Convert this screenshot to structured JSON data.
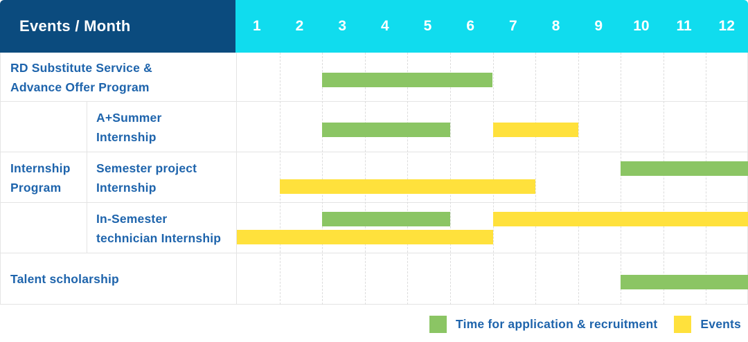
{
  "header": {
    "title": "Events / Month",
    "months": [
      "1",
      "2",
      "3",
      "4",
      "5",
      "6",
      "7",
      "8",
      "9",
      "10",
      "11",
      "12"
    ]
  },
  "colors": {
    "navy": "#0B4B7E",
    "cyan": "#10DCEE",
    "green": "#8BC564",
    "yellow": "#FFE13C",
    "label_blue": "#1E64AC",
    "grid_dash": "#DCDCDC",
    "row_border": "#E4E4E4"
  },
  "legend": [
    {
      "label": "Time for application & recruitment",
      "color_key": "green"
    },
    {
      "label": "Events",
      "color_key": "yellow"
    }
  ],
  "chart_data": {
    "type": "bar",
    "variant": "gantt",
    "title": "Events / Month",
    "x_axis": {
      "label": "Month",
      "ticks": [
        1,
        2,
        3,
        4,
        5,
        6,
        7,
        8,
        9,
        10,
        11,
        12
      ],
      "range": [
        1,
        12
      ]
    },
    "grid": "vertical-dashed",
    "legend_position": "bottom-right",
    "series_names": [
      "Time for application & recruitment",
      "Events"
    ],
    "rows": [
      {
        "category": "RD Substitute Service & Advance Offer Program",
        "label_lines": [
          "RD Substitute Service &",
          "Advance Offer Program"
        ],
        "group": null,
        "bars": [
          {
            "series": "Time for application & recruitment",
            "color_key": "green",
            "start_month": 3,
            "end_month": 6,
            "lane": "mid"
          }
        ]
      },
      {
        "category": "A+Summer Internship",
        "label_lines": [
          "A+Summer",
          "Internship"
        ],
        "group": "Internship Program",
        "bars": [
          {
            "series": "Time for application & recruitment",
            "color_key": "green",
            "start_month": 3,
            "end_month": 5,
            "lane": "mid"
          },
          {
            "series": "Events",
            "color_key": "yellow",
            "start_month": 7,
            "end_month": 8,
            "lane": "mid"
          }
        ]
      },
      {
        "category": "Semester project Internship",
        "label_lines": [
          "Semester project",
          "Internship"
        ],
        "group": "Internship Program",
        "bars": [
          {
            "series": "Time for application & recruitment",
            "color_key": "green",
            "start_month": 10,
            "end_month": 12,
            "lane": "upper"
          },
          {
            "series": "Events",
            "color_key": "yellow",
            "start_month": 2,
            "end_month": 7,
            "lane": "lower"
          }
        ]
      },
      {
        "category": "In-Semester technician Internship",
        "label_lines": [
          "In-Semester",
          "technician Internship"
        ],
        "group": "Internship Program",
        "bars": [
          {
            "series": "Time for application & recruitment",
            "color_key": "green",
            "start_month": 3,
            "end_month": 5,
            "lane": "upper"
          },
          {
            "series": "Events",
            "color_key": "yellow",
            "start_month": 7,
            "end_month": 12,
            "lane": "upper"
          },
          {
            "series": "Events",
            "color_key": "yellow",
            "start_month": 1,
            "end_month": 6,
            "lane": "lower"
          }
        ]
      },
      {
        "category": "Talent scholarship",
        "label_lines": [
          "Talent scholarship"
        ],
        "group": null,
        "bars": [
          {
            "series": "Time for application & recruitment",
            "color_key": "green",
            "start_month": 10,
            "end_month": 12,
            "lane": "mid"
          }
        ]
      }
    ],
    "group_label_lines": [
      "Internship",
      "Program"
    ]
  }
}
